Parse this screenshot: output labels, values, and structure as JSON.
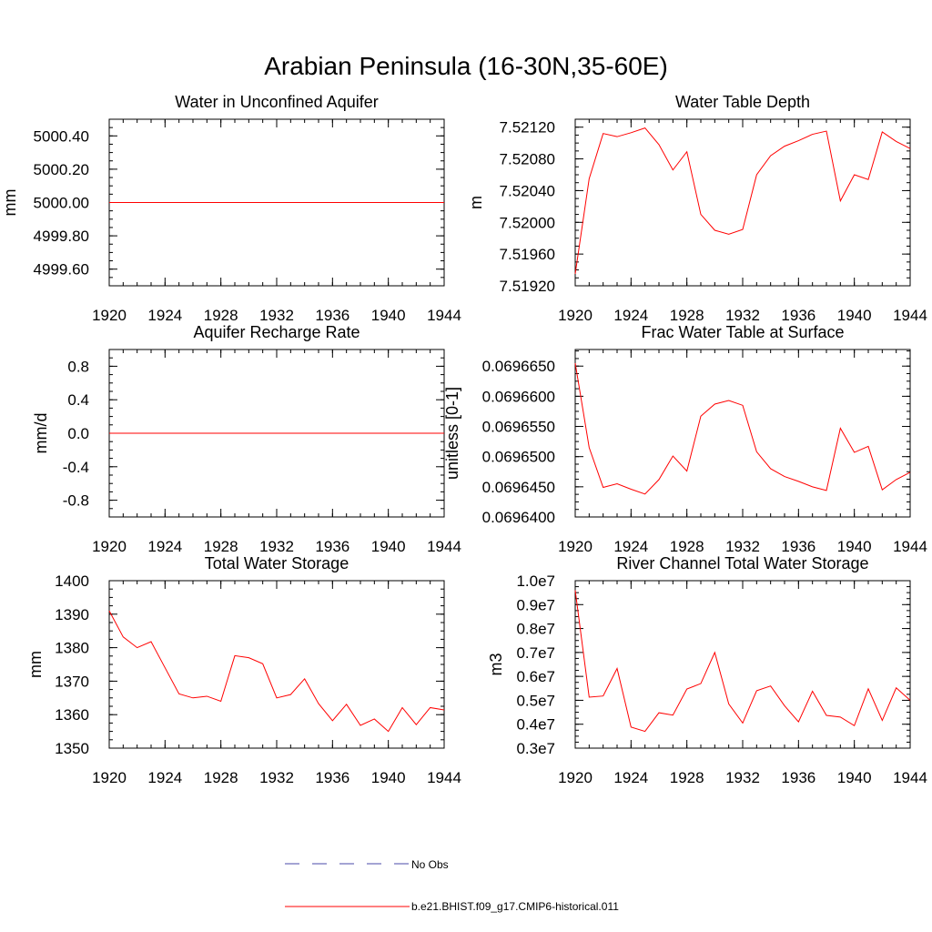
{
  "figure": {
    "title": "Arabian Peninsula (16-30N,35-60E)",
    "line_color": "#ff0000",
    "obs_color": "#4a4aa8"
  },
  "legend": {
    "entries": [
      {
        "label": "No Obs",
        "style": "dashed",
        "color": "#4a4aa8"
      },
      {
        "label": "b.e21.BHIST.f09_g17.CMIP6-historical.011",
        "style": "solid",
        "color": "#ff0000"
      }
    ]
  },
  "chart_data": [
    {
      "id": "water-in-unconfined-aquifer",
      "type": "line",
      "title": "Water in Unconfined Aquifer",
      "ylabel": "mm",
      "xlim": [
        1920,
        1944
      ],
      "ylim": [
        4999.5,
        5000.5
      ],
      "xticks": [
        1920,
        1924,
        1928,
        1932,
        1936,
        1940,
        1944
      ],
      "yticks": [
        4999.6,
        4999.8,
        5000.0,
        5000.2,
        5000.4
      ],
      "ytick_labels": [
        "4999.60",
        "4999.80",
        "5000.00",
        "5000.20",
        "5000.40"
      ],
      "x": [
        1920,
        1944
      ],
      "series": [
        {
          "values": [
            5000.0,
            5000.0
          ]
        }
      ]
    },
    {
      "id": "water-table-depth",
      "type": "line",
      "title": "Water Table Depth",
      "ylabel": "m",
      "xlim": [
        1920,
        1944
      ],
      "ylim": [
        7.5192,
        7.5213
      ],
      "xticks": [
        1920,
        1924,
        1928,
        1932,
        1936,
        1940,
        1944
      ],
      "yticks": [
        7.5192,
        7.5196,
        7.52,
        7.5204,
        7.5208,
        7.5212
      ],
      "ytick_labels": [
        "7.51920",
        "7.51960",
        "7.52000",
        "7.52040",
        "7.52080",
        "7.52120"
      ],
      "x": [
        1920,
        1921,
        1922,
        1923,
        1924,
        1925,
        1926,
        1927,
        1928,
        1929,
        1930,
        1931,
        1932,
        1933,
        1934,
        1935,
        1936,
        1937,
        1938,
        1939,
        1940,
        1941,
        1942,
        1943,
        1944
      ],
      "series": [
        {
          "values": [
            7.51935,
            7.52055,
            7.52112,
            7.52108,
            7.52113,
            7.52119,
            7.52098,
            7.52066,
            7.52089,
            7.5201,
            7.5199,
            7.51985,
            7.51991,
            7.5206,
            7.52084,
            7.52096,
            7.52103,
            7.52111,
            7.52115,
            7.52027,
            7.5206,
            7.52054,
            7.52114,
            7.52102,
            7.52093
          ]
        }
      ]
    },
    {
      "id": "aquifer-recharge-rate",
      "type": "line",
      "title": "Aquifer Recharge Rate",
      "ylabel": "mm/d",
      "xlim": [
        1920,
        1944
      ],
      "ylim": [
        -1.0,
        1.0
      ],
      "xticks": [
        1920,
        1924,
        1928,
        1932,
        1936,
        1940,
        1944
      ],
      "yticks": [
        -0.8,
        -0.4,
        0.0,
        0.4,
        0.8
      ],
      "ytick_labels": [
        "-0.8",
        "-0.4",
        "0.0",
        "0.4",
        "0.8"
      ],
      "x": [
        1920,
        1944
      ],
      "series": [
        {
          "values": [
            0.0,
            0.0
          ]
        }
      ]
    },
    {
      "id": "frac-water-table-at-surface",
      "type": "line",
      "title": "Frac Water Table at Surface",
      "ylabel": "unitless [0-1]",
      "xlim": [
        1920,
        1944
      ],
      "ylim": [
        0.06964,
        0.06966775
      ],
      "xticks": [
        1920,
        1924,
        1928,
        1932,
        1936,
        1940,
        1944
      ],
      "yticks": [
        0.06964,
        0.069645,
        0.06965,
        0.069655,
        0.06966,
        0.069665
      ],
      "ytick_labels": [
        "0.0696400",
        "0.0696450",
        "0.0696500",
        "0.0696550",
        "0.0696600",
        "0.0696650"
      ],
      "x": [
        1920,
        1921,
        1922,
        1923,
        1924,
        1925,
        1926,
        1927,
        1928,
        1929,
        1930,
        1931,
        1932,
        1933,
        1934,
        1935,
        1936,
        1937,
        1938,
        1939,
        1940,
        1941,
        1942,
        1943,
        1944
      ],
      "series": [
        {
          "values": [
            0.0696655,
            0.0696515,
            0.0696449,
            0.0696455,
            0.0696446,
            0.0696438,
            0.0696462,
            0.0696501,
            0.0696476,
            0.0696567,
            0.0696587,
            0.0696593,
            0.0696585,
            0.0696508,
            0.069648,
            0.0696467,
            0.0696459,
            0.069645,
            0.0696444,
            0.0696547,
            0.0696507,
            0.0696517,
            0.0696445,
            0.0696462,
            0.0696474
          ]
        }
      ]
    },
    {
      "id": "total-water-storage",
      "type": "line",
      "title": "Total Water Storage",
      "ylabel": "mm",
      "xlim": [
        1920,
        1944
      ],
      "ylim": [
        1350,
        1400
      ],
      "xticks": [
        1920,
        1924,
        1928,
        1932,
        1936,
        1940,
        1944
      ],
      "yticks": [
        1350,
        1360,
        1370,
        1380,
        1390,
        1400
      ],
      "ytick_labels": [
        "1350",
        "1360",
        "1370",
        "1380",
        "1390",
        "1400"
      ],
      "x": [
        1920,
        1921,
        1922,
        1923,
        1924,
        1925,
        1926,
        1927,
        1928,
        1929,
        1930,
        1931,
        1932,
        1933,
        1934,
        1935,
        1936,
        1937,
        1938,
        1939,
        1940,
        1941,
        1942,
        1943,
        1944
      ],
      "series": [
        {
          "values": [
            1391,
            1383.2,
            1380,
            1381.8,
            1374,
            1366.2,
            1365,
            1365.5,
            1364,
            1377.6,
            1377,
            1375.2,
            1365,
            1366,
            1370.7,
            1363.3,
            1358.2,
            1363.1,
            1356.8,
            1358.7,
            1355,
            1362.1,
            1357,
            1362.1,
            1361.4
          ]
        }
      ]
    },
    {
      "id": "river-channel-total-water-storage",
      "type": "line",
      "title": "River Channel Total Water Storage",
      "ylabel": "m3",
      "xlim": [
        1920,
        1944
      ],
      "ylim": [
        3000000,
        10000000
      ],
      "xticks": [
        1920,
        1924,
        1928,
        1932,
        1936,
        1940,
        1944
      ],
      "yticks": [
        3000000,
        4000000,
        5000000,
        6000000,
        7000000,
        8000000,
        9000000,
        10000000
      ],
      "ytick_labels": [
        "0.3e7",
        "0.4e7",
        "0.5e7",
        "0.6e7",
        "0.7e7",
        "0.8e7",
        "0.9e7",
        "1.0e7"
      ],
      "x": [
        1920,
        1921,
        1922,
        1923,
        1924,
        1925,
        1926,
        1927,
        1928,
        1929,
        1930,
        1931,
        1932,
        1933,
        1934,
        1935,
        1936,
        1937,
        1938,
        1939,
        1940,
        1941,
        1942,
        1943,
        1944
      ],
      "series": [
        {
          "values": [
            9600000,
            5130000,
            5180000,
            6330000,
            3880000,
            3700000,
            4480000,
            4380000,
            5470000,
            5700000,
            7000000,
            4850000,
            4050000,
            5400000,
            5600000,
            4770000,
            4100000,
            5380000,
            4370000,
            4300000,
            3940000,
            5480000,
            4160000,
            5520000,
            5000000
          ]
        }
      ]
    }
  ]
}
